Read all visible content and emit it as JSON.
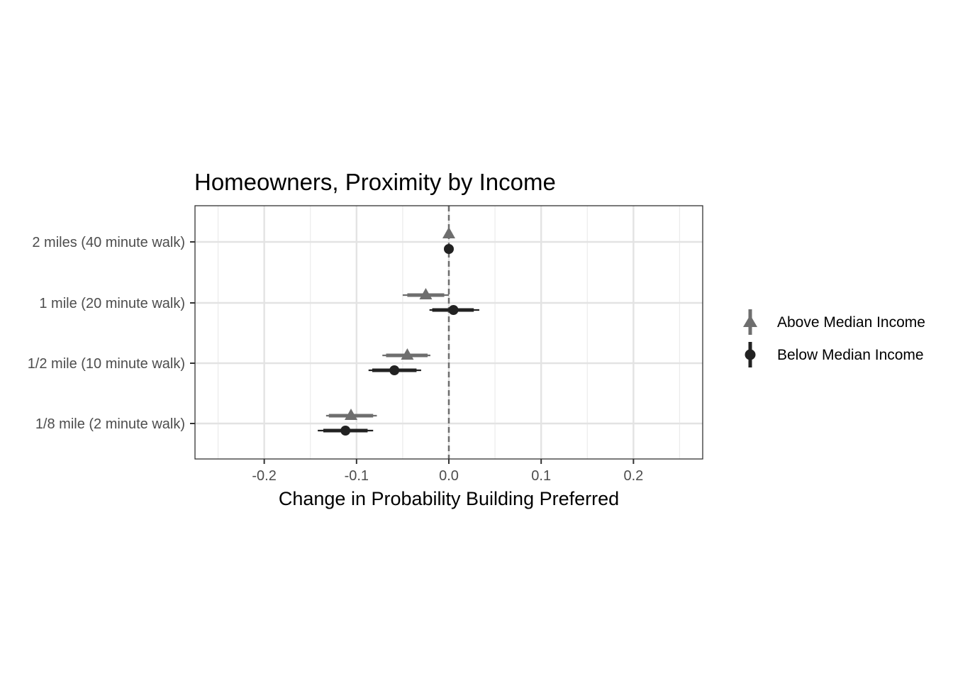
{
  "chart_data": {
    "type": "scatter",
    "title": "Homeowners, Proximity by Income",
    "xlabel": "Change in Probability Building Preferred",
    "ylabel": "",
    "xlim": [
      -0.275,
      0.275
    ],
    "x_ticks": [
      -0.2,
      -0.1,
      0.0,
      0.1,
      0.2
    ],
    "x_tick_labels": [
      "-0.2",
      "-0.1",
      "0.0",
      "0.1",
      "0.2"
    ],
    "categories": [
      "2 miles (40 minute walk)",
      "1 mile (20 minute walk)",
      "1/2 mile (10 minute walk)",
      "1/8 mile (2 minute walk)"
    ],
    "reference_line": 0.0,
    "grid": true,
    "legend_position": "right",
    "series": [
      {
        "name": "Above Median Income",
        "color": "#6e6e6e",
        "marker": "triangle",
        "estimates": [
          0.0,
          -0.025,
          -0.045,
          -0.106
        ],
        "ci_inner": [
          [
            0.0,
            0.0
          ],
          [
            -0.045,
            -0.005
          ],
          [
            -0.068,
            -0.023
          ],
          [
            -0.13,
            -0.082
          ]
        ],
        "ci_outer": [
          [
            0.0,
            0.0
          ],
          [
            -0.05,
            0.0
          ],
          [
            -0.072,
            -0.02
          ],
          [
            -0.133,
            -0.078
          ]
        ]
      },
      {
        "name": "Below Median Income",
        "color": "#222222",
        "marker": "circle",
        "estimates": [
          0.0,
          0.005,
          -0.059,
          -0.112
        ],
        "ci_inner": [
          [
            0.0,
            0.0
          ],
          [
            -0.018,
            0.027
          ],
          [
            -0.083,
            -0.035
          ],
          [
            -0.136,
            -0.088
          ]
        ],
        "ci_outer": [
          [
            0.0,
            0.0
          ],
          [
            -0.021,
            0.033
          ],
          [
            -0.087,
            -0.03
          ],
          [
            -0.142,
            -0.082
          ]
        ]
      }
    ]
  }
}
